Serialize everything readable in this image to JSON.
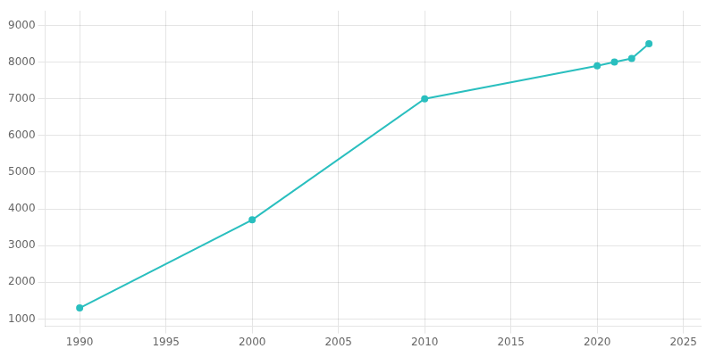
{
  "chart_data": {
    "type": "line",
    "x": [
      1990,
      2000,
      2010,
      2020,
      2021,
      2022,
      2023
    ],
    "values": [
      1300,
      3700,
      7000,
      7900,
      8000,
      8100,
      8500
    ],
    "color": "#2abfbf",
    "marker": "circle",
    "line_style": "solid",
    "xlim": [
      1988,
      2026
    ],
    "xticks": [
      1990,
      1995,
      2000,
      2005,
      2010,
      2015,
      2020,
      2025
    ],
    "ylim": [
      800,
      9400
    ],
    "yticks": [
      1000,
      2000,
      3000,
      4000,
      5000,
      6000,
      7000,
      8000,
      9000
    ],
    "grid": true
  }
}
